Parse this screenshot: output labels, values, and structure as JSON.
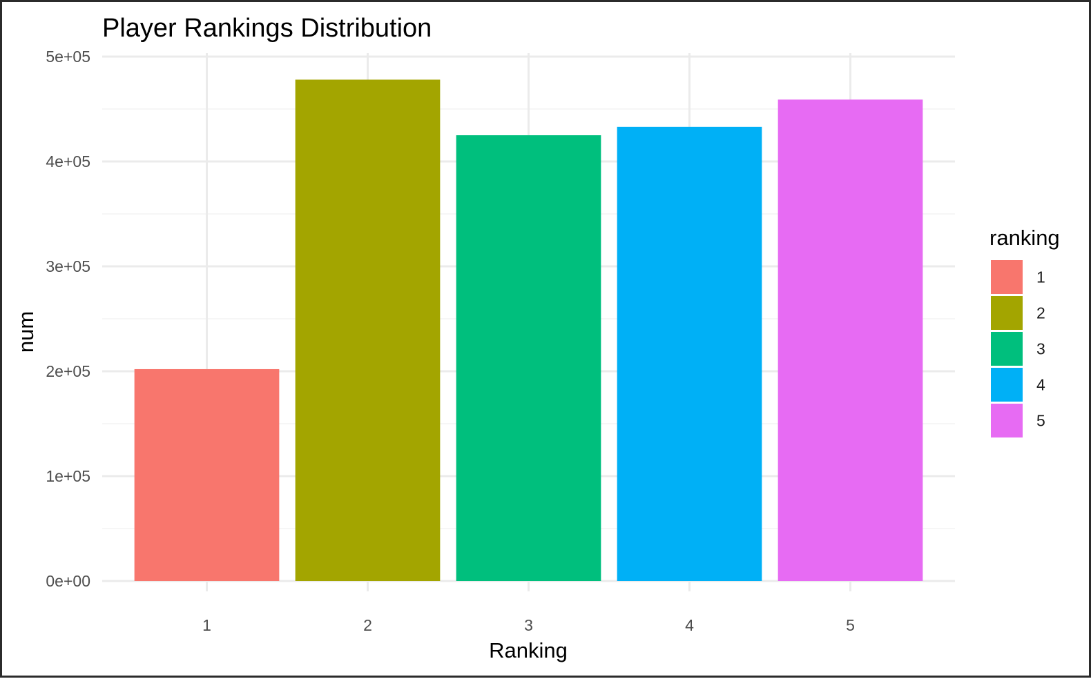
{
  "chart_data": {
    "type": "bar",
    "title": "Player Rankings Distribution",
    "xlabel": "Ranking",
    "ylabel": "num",
    "categories": [
      "1",
      "2",
      "3",
      "4",
      "5"
    ],
    "values": [
      202000,
      478000,
      425000,
      433000,
      459000
    ],
    "colors": [
      "#F8766D",
      "#A3A500",
      "#00BF7D",
      "#00B0F6",
      "#E76BF3"
    ],
    "ylim": [
      0,
      500000
    ],
    "y_ticks": [
      0,
      100000,
      200000,
      300000,
      400000,
      500000
    ],
    "y_tick_labels": [
      "0e+00",
      "1e+05",
      "2e+05",
      "3e+05",
      "4e+05",
      "5e+05"
    ],
    "grid": true,
    "legend": {
      "title": "ranking",
      "position": "right",
      "entries": [
        "1",
        "2",
        "3",
        "4",
        "5"
      ]
    }
  }
}
